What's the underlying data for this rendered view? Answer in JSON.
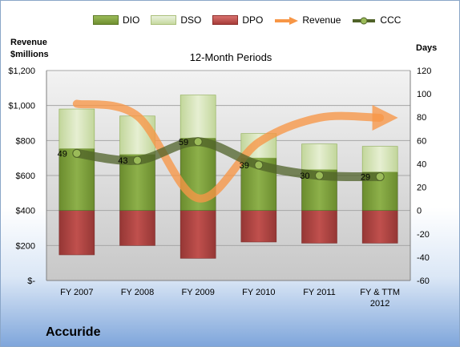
{
  "company": "Accuride",
  "chart_data": {
    "type": "bar",
    "title": "12-Month Periods",
    "ylabel_left": [
      "Revenue",
      "$millions"
    ],
    "ylabel_right": "Days",
    "categories": [
      [
        "FY 2007"
      ],
      [
        "FY 2008"
      ],
      [
        "FY 2009"
      ],
      [
        "FY 2010"
      ],
      [
        "FY 2011"
      ],
      [
        "FY & TTM",
        "2012"
      ]
    ],
    "left_axis": {
      "ylim": [
        0,
        1200
      ],
      "ticks": [
        0,
        200,
        400,
        600,
        800,
        1000,
        1200
      ],
      "tick_labels": [
        "$-",
        "$200",
        "$400",
        "$600",
        "$800",
        "$1,000",
        "$1,200"
      ]
    },
    "right_axis": {
      "ylim": [
        -60,
        120
      ],
      "ticks": [
        -60,
        -40,
        -20,
        0,
        20,
        40,
        60,
        80,
        100,
        120
      ]
    },
    "series": [
      {
        "name": "DIO",
        "kind": "bar",
        "axis": "right",
        "values": [
          53,
          48,
          62,
          45,
          35,
          33
        ],
        "color": "#77933c"
      },
      {
        "name": "DSO",
        "kind": "bar",
        "axis": "right",
        "values": [
          34,
          33,
          37,
          21,
          22,
          22
        ],
        "color": "#d7e4bd"
      },
      {
        "name": "DPO",
        "kind": "bar",
        "axis": "right",
        "values": [
          38,
          30,
          41,
          27,
          28,
          28
        ],
        "color": "#c0504d"
      },
      {
        "name": "Revenue",
        "kind": "line",
        "axis": "left",
        "values": [
          1010,
          940,
          470,
          790,
          930,
          930
        ],
        "color": "#f79646"
      },
      {
        "name": "CCC",
        "kind": "line",
        "axis": "right",
        "values": [
          49,
          43,
          59,
          39,
          30,
          29
        ],
        "labels": [
          "49",
          "43",
          "59",
          "39",
          "30",
          "29"
        ],
        "color": "#4f6228"
      }
    ],
    "grid": true,
    "legend_position": "top"
  }
}
